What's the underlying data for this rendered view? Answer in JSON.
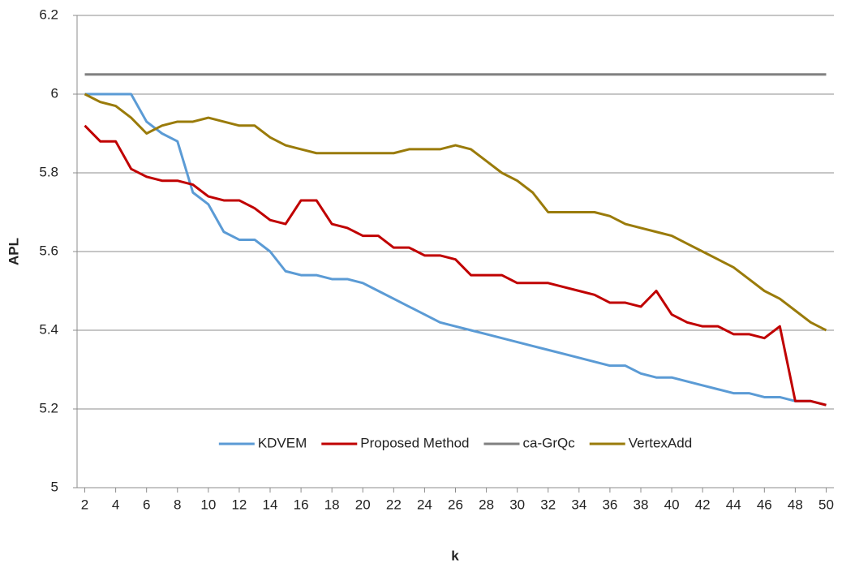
{
  "chart_data": {
    "type": "line",
    "x_label": "k",
    "y_label": "APL",
    "x": [
      2,
      3,
      4,
      5,
      6,
      7,
      8,
      9,
      10,
      11,
      12,
      13,
      14,
      15,
      16,
      17,
      18,
      19,
      20,
      21,
      22,
      23,
      24,
      25,
      26,
      27,
      28,
      29,
      30,
      31,
      32,
      33,
      34,
      35,
      36,
      37,
      38,
      39,
      40,
      41,
      42,
      43,
      44,
      45,
      46,
      47,
      48,
      49,
      50
    ],
    "xlim": [
      1.5,
      50.5
    ],
    "xticks": [
      2,
      4,
      6,
      8,
      10,
      12,
      14,
      16,
      18,
      20,
      22,
      24,
      26,
      28,
      30,
      32,
      34,
      36,
      38,
      40,
      42,
      44,
      46,
      48,
      50
    ],
    "ylim": [
      5,
      6.2
    ],
    "yticks": [
      5,
      5.2,
      5.4,
      5.6,
      5.8,
      6,
      6.2
    ],
    "grid": true,
    "legend": "bottom",
    "series": [
      {
        "name": "KDVEM",
        "color": "#5b9bd5",
        "values": [
          6,
          6,
          6,
          6,
          5.93,
          5.9,
          5.88,
          5.75,
          5.72,
          5.65,
          5.63,
          5.63,
          5.6,
          5.55,
          5.54,
          5.54,
          5.53,
          5.53,
          5.52,
          5.5,
          5.48,
          5.46,
          5.44,
          5.42,
          5.41,
          5.4,
          5.39,
          5.38,
          5.37,
          5.36,
          5.35,
          5.34,
          5.33,
          5.32,
          5.31,
          5.31,
          5.29,
          5.28,
          5.28,
          5.27,
          5.26,
          5.25,
          5.24,
          5.24,
          5.23,
          5.23,
          5.22,
          5.22,
          5.21
        ]
      },
      {
        "name": "Proposed Method",
        "color": "#c00000",
        "values": [
          5.92,
          5.88,
          5.88,
          5.81,
          5.79,
          5.78,
          5.78,
          5.77,
          5.74,
          5.73,
          5.73,
          5.71,
          5.68,
          5.67,
          5.73,
          5.73,
          5.67,
          5.66,
          5.64,
          5.64,
          5.61,
          5.61,
          5.59,
          5.59,
          5.58,
          5.54,
          5.54,
          5.54,
          5.52,
          5.52,
          5.52,
          5.51,
          5.5,
          5.49,
          5.47,
          5.47,
          5.46,
          5.5,
          5.44,
          5.42,
          5.41,
          5.41,
          5.39,
          5.39,
          5.38,
          5.41,
          5.22,
          5.22,
          5.21
        ]
      },
      {
        "name": "ca-GrQc",
        "color": "#808080",
        "values": [
          6.05,
          6.05,
          6.05,
          6.05,
          6.05,
          6.05,
          6.05,
          6.05,
          6.05,
          6.05,
          6.05,
          6.05,
          6.05,
          6.05,
          6.05,
          6.05,
          6.05,
          6.05,
          6.05,
          6.05,
          6.05,
          6.05,
          6.05,
          6.05,
          6.05,
          6.05,
          6.05,
          6.05,
          6.05,
          6.05,
          6.05,
          6.05,
          6.05,
          6.05,
          6.05,
          6.05,
          6.05,
          6.05,
          6.05,
          6.05,
          6.05,
          6.05,
          6.05,
          6.05,
          6.05,
          6.05,
          6.05,
          6.05,
          6.05
        ]
      },
      {
        "name": "VertexAdd",
        "color": "#9a7b0a",
        "values": [
          6,
          5.98,
          5.97,
          5.94,
          5.9,
          5.92,
          5.93,
          5.93,
          5.94,
          5.93,
          5.92,
          5.92,
          5.89,
          5.87,
          5.86,
          5.85,
          5.85,
          5.85,
          5.85,
          5.85,
          5.85,
          5.86,
          5.86,
          5.86,
          5.87,
          5.86,
          5.83,
          5.8,
          5.78,
          5.75,
          5.7,
          5.7,
          5.7,
          5.7,
          5.69,
          5.67,
          5.66,
          5.65,
          5.64,
          5.62,
          5.6,
          5.58,
          5.56,
          5.53,
          5.5,
          5.48,
          5.45,
          5.42,
          5.4
        ]
      }
    ]
  }
}
